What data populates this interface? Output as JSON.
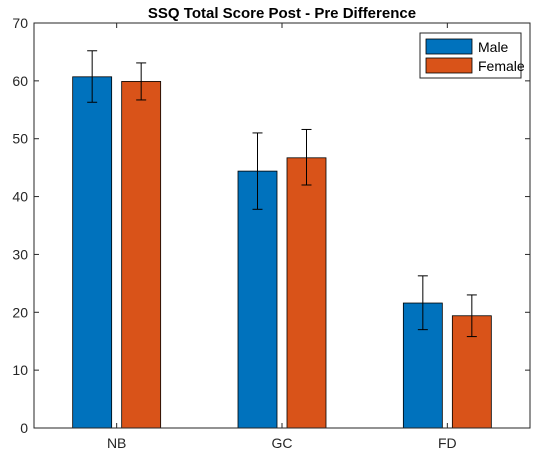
{
  "chart_data": {
    "type": "bar",
    "title": "SSQ Total Score Post - Pre Difference",
    "xlabel": "",
    "ylabel": "",
    "categories": [
      "NB",
      "GC",
      "FD"
    ],
    "series": [
      {
        "name": "Male",
        "color": "#0072BD",
        "values": [
          60.7,
          44.4,
          21.6
        ],
        "error_low": [
          56.3,
          37.8,
          17.0
        ],
        "error_high": [
          65.2,
          51.0,
          26.3
        ]
      },
      {
        "name": "Female",
        "color": "#D95319",
        "values": [
          59.9,
          46.7,
          19.4
        ],
        "error_low": [
          56.7,
          42.0,
          15.8
        ],
        "error_high": [
          63.1,
          51.6,
          23.0
        ]
      }
    ],
    "ylim": [
      0,
      70
    ],
    "yticks": [
      "0",
      "10",
      "20",
      "30",
      "40",
      "50",
      "60",
      "70"
    ],
    "grid": false,
    "legend_position": "top-right"
  }
}
